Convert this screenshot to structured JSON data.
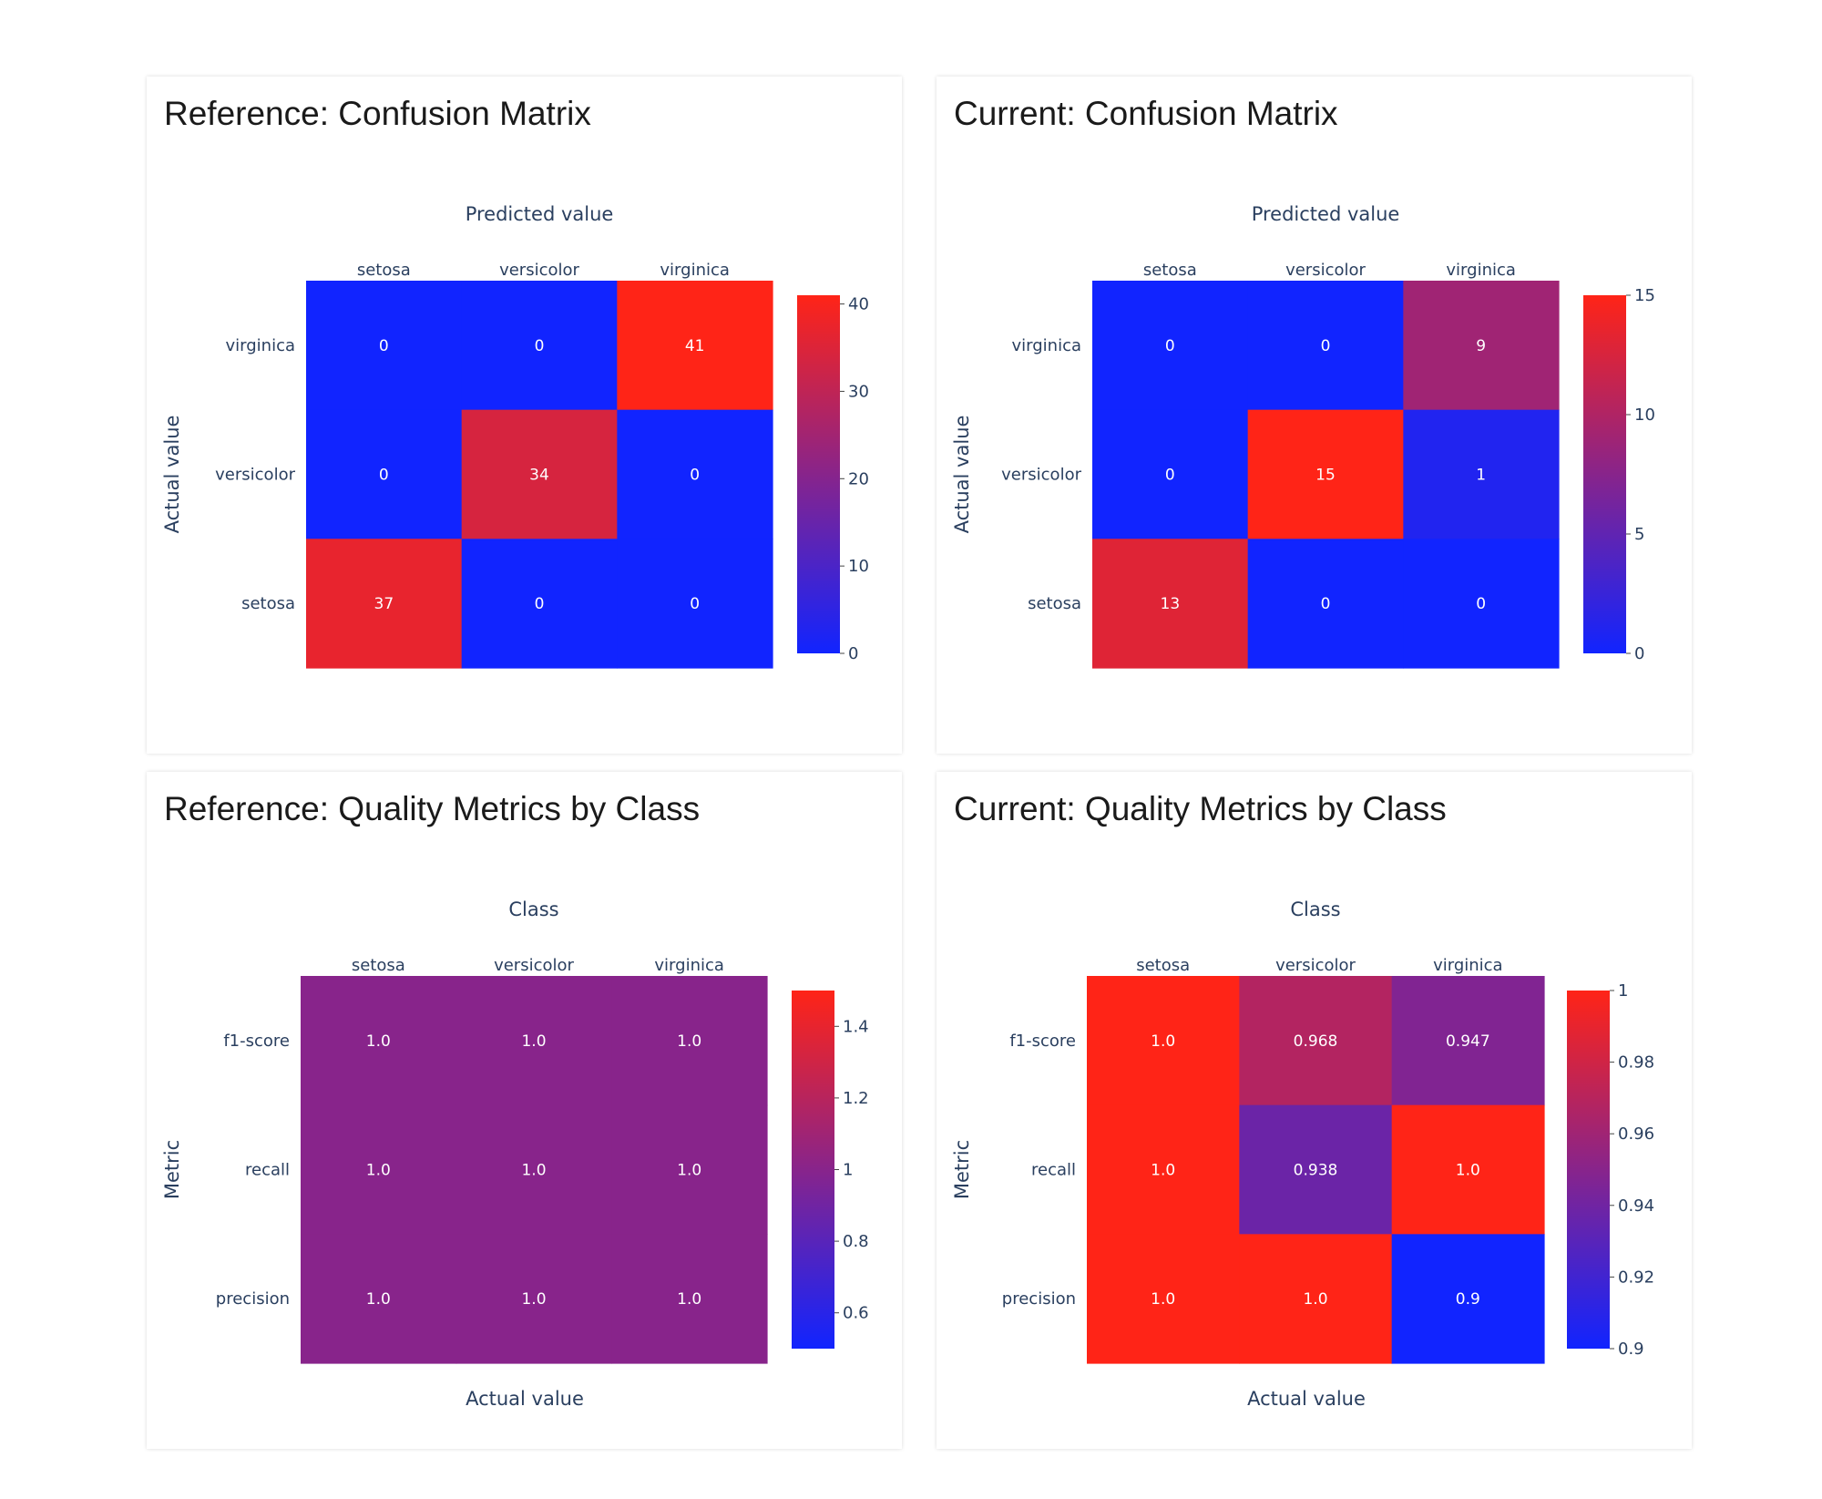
{
  "chart_data": [
    {
      "type": "heatmap",
      "title": "Reference: Confusion Matrix",
      "xlabel": "Predicted value",
      "ylabel": "Actual value",
      "bottom_label": "",
      "x_categories": [
        "setosa",
        "versicolor",
        "virginica"
      ],
      "y_categories": [
        "virginica",
        "versicolor",
        "setosa"
      ],
      "values": [
        [
          0,
          0,
          41
        ],
        [
          0,
          34,
          0
        ],
        [
          37,
          0,
          0
        ]
      ],
      "cell_labels": [
        [
          "0",
          "0",
          "41"
        ],
        [
          "0",
          "34",
          "0"
        ],
        [
          "37",
          "0",
          "0"
        ]
      ],
      "zrange": [
        0,
        41
      ],
      "colorbar_ticks": [
        {
          "value": 0,
          "label": "0"
        },
        {
          "value": 10,
          "label": "10"
        },
        {
          "value": 20,
          "label": "20"
        },
        {
          "value": 30,
          "label": "30"
        },
        {
          "value": 40,
          "label": "40"
        }
      ],
      "colorscale": [
        "#1124ff",
        "#ff2417"
      ],
      "grid": false
    },
    {
      "type": "heatmap",
      "title": "Current: Confusion Matrix",
      "xlabel": "Predicted value",
      "ylabel": "Actual value",
      "bottom_label": "",
      "x_categories": [
        "setosa",
        "versicolor",
        "virginica"
      ],
      "y_categories": [
        "virginica",
        "versicolor",
        "setosa"
      ],
      "values": [
        [
          0,
          0,
          9
        ],
        [
          0,
          15,
          1
        ],
        [
          13,
          0,
          0
        ]
      ],
      "cell_labels": [
        [
          "0",
          "0",
          "9"
        ],
        [
          "0",
          "15",
          "1"
        ],
        [
          "13",
          "0",
          "0"
        ]
      ],
      "zrange": [
        0,
        15
      ],
      "colorbar_ticks": [
        {
          "value": 0,
          "label": "0"
        },
        {
          "value": 5,
          "label": "5"
        },
        {
          "value": 10,
          "label": "10"
        },
        {
          "value": 15,
          "label": "15"
        }
      ],
      "colorscale": [
        "#1124ff",
        "#ff2417"
      ],
      "grid": false
    },
    {
      "type": "heatmap",
      "title": "Reference: Quality Metrics by Class",
      "xlabel": "Class",
      "ylabel": "Metric",
      "bottom_label": "Actual value",
      "x_categories": [
        "setosa",
        "versicolor",
        "virginica"
      ],
      "y_categories": [
        "f1-score",
        "recall",
        "precision"
      ],
      "values": [
        [
          1.0,
          1.0,
          1.0
        ],
        [
          1.0,
          1.0,
          1.0
        ],
        [
          1.0,
          1.0,
          1.0
        ]
      ],
      "cell_labels": [
        [
          "1.0",
          "1.0",
          "1.0"
        ],
        [
          "1.0",
          "1.0",
          "1.0"
        ],
        [
          "1.0",
          "1.0",
          "1.0"
        ]
      ],
      "zrange": [
        0.5,
        1.5
      ],
      "colorbar_ticks": [
        {
          "value": 0.6,
          "label": "0.6"
        },
        {
          "value": 0.8,
          "label": "0.8"
        },
        {
          "value": 1,
          "label": "1"
        },
        {
          "value": 1.2,
          "label": "1.2"
        },
        {
          "value": 1.4,
          "label": "1.4"
        }
      ],
      "colorscale": [
        "#1124ff",
        "#ff2417"
      ],
      "grid": false
    },
    {
      "type": "heatmap",
      "title": "Current: Quality Metrics by Class",
      "xlabel": "Class",
      "ylabel": "Metric",
      "bottom_label": "Actual value",
      "x_categories": [
        "setosa",
        "versicolor",
        "virginica"
      ],
      "y_categories": [
        "f1-score",
        "recall",
        "precision"
      ],
      "values": [
        [
          1.0,
          0.968,
          0.947
        ],
        [
          1.0,
          0.938,
          1.0
        ],
        [
          1.0,
          1.0,
          0.9
        ]
      ],
      "cell_labels": [
        [
          "1.0",
          "0.968",
          "0.947"
        ],
        [
          "1.0",
          "0.938",
          "1.0"
        ],
        [
          "1.0",
          "1.0",
          "0.9"
        ]
      ],
      "zrange": [
        0.9,
        1.0
      ],
      "colorbar_ticks": [
        {
          "value": 0.9,
          "label": "0.9"
        },
        {
          "value": 0.92,
          "label": "0.92"
        },
        {
          "value": 0.94,
          "label": "0.94"
        },
        {
          "value": 0.96,
          "label": "0.96"
        },
        {
          "value": 0.98,
          "label": "0.98"
        },
        {
          "value": 1,
          "label": "1"
        }
      ],
      "colorscale": [
        "#1124ff",
        "#ff2417"
      ],
      "grid": false
    }
  ]
}
